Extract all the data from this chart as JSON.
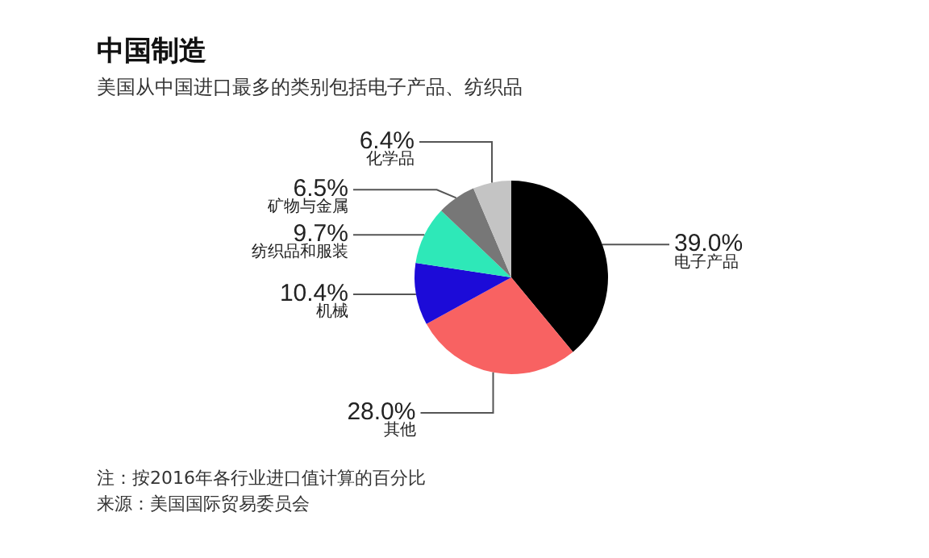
{
  "chart_data": {
    "type": "pie",
    "title": "中国制造",
    "subtitle": "美国从中国进口最多的类别包括电子产品、纺织品",
    "categories": [
      "电子产品",
      "其他",
      "机械",
      "纺织品和服装",
      "矿物与金属",
      "化学品"
    ],
    "values": [
      39.0,
      28.0,
      10.4,
      9.7,
      6.5,
      6.4
    ],
    "value_labels": [
      "39.0%",
      "28.0%",
      "10.4%",
      "9.7%",
      "6.5%",
      "6.4%"
    ],
    "colors": [
      "#000000",
      "#f86262",
      "#1c0bd8",
      "#2ee8b8",
      "#777777",
      "#c4c4c4"
    ],
    "annotations": [
      "注：按2016年各行业进口值计算的百分比",
      "来源：美国国际贸易委员会"
    ]
  }
}
